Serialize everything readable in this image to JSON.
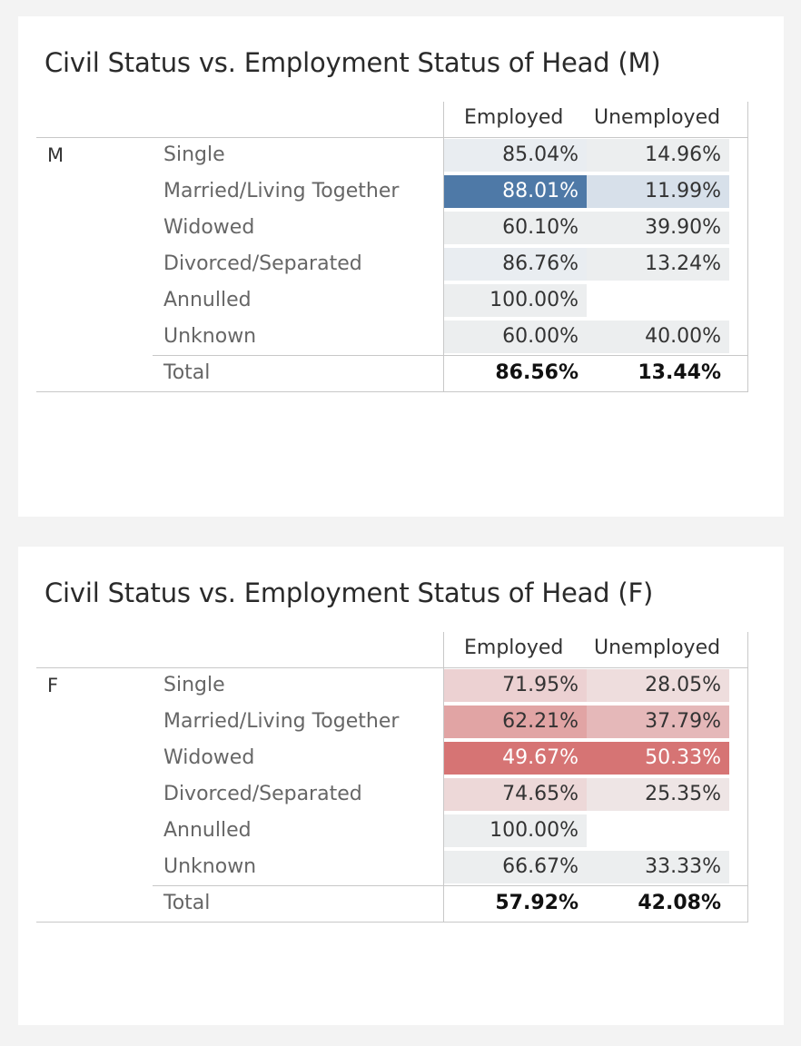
{
  "columns": [
    "Employed",
    "Unemployed"
  ],
  "tables": [
    {
      "title": "Civil Status vs. Employment Status of Head (M)",
      "group": "M",
      "rows": [
        {
          "label": "Single",
          "employed": "85.04%",
          "unemployed": "14.96%"
        },
        {
          "label": "Married/Living Together",
          "employed": "88.01%",
          "unemployed": "11.99%"
        },
        {
          "label": "Widowed",
          "employed": "60.10%",
          "unemployed": "39.90%"
        },
        {
          "label": "Divorced/Separated",
          "employed": "86.76%",
          "unemployed": "13.24%"
        },
        {
          "label": "Annulled",
          "employed": "100.00%",
          "unemployed": ""
        },
        {
          "label": "Unknown",
          "employed": "60.00%",
          "unemployed": "40.00%"
        }
      ],
      "total": {
        "label": "Total",
        "employed": "86.56%",
        "unemployed": "13.44%"
      }
    },
    {
      "title": "Civil Status vs. Employment Status of Head (F)",
      "group": "F",
      "rows": [
        {
          "label": "Single",
          "employed": "71.95%",
          "unemployed": "28.05%"
        },
        {
          "label": "Married/Living Together",
          "employed": "62.21%",
          "unemployed": "37.79%"
        },
        {
          "label": "Widowed",
          "employed": "49.67%",
          "unemployed": "50.33%"
        },
        {
          "label": "Divorced/Separated",
          "employed": "74.65%",
          "unemployed": "25.35%"
        },
        {
          "label": "Annulled",
          "employed": "100.00%",
          "unemployed": ""
        },
        {
          "label": "Unknown",
          "employed": "66.67%",
          "unemployed": "33.33%"
        }
      ],
      "total": {
        "label": "Total",
        "employed": "57.92%",
        "unemployed": "42.08%"
      }
    }
  ],
  "chart_data": [
    {
      "type": "heatmap",
      "title": "Civil Status vs. Employment Status of Head (M)",
      "row_group": "M",
      "columns": [
        "Employed",
        "Unemployed"
      ],
      "rows": [
        "Single",
        "Married/Living Together",
        "Widowed",
        "Divorced/Separated",
        "Annulled",
        "Unknown"
      ],
      "values": [
        [
          85.04,
          14.96
        ],
        [
          88.01,
          11.99
        ],
        [
          60.1,
          39.9
        ],
        [
          86.76,
          13.24
        ],
        [
          100.0,
          null
        ],
        [
          60.0,
          40.0
        ]
      ],
      "total": [
        86.56,
        13.44
      ],
      "color_scale": {
        "low": "#eceeef",
        "high": "#4e79a7"
      },
      "cell_fills": [
        [
          "#e9edf1",
          "#eceeef"
        ],
        [
          "#4e79a7",
          "#d7e0ea"
        ],
        [
          "#eceeef",
          "#eceeef"
        ],
        [
          "#e9edf1",
          "#eceeef"
        ],
        [
          "#eceeef",
          "#ffffff"
        ],
        [
          "#eceeef",
          "#eceeef"
        ]
      ]
    },
    {
      "type": "heatmap",
      "title": "Civil Status vs. Employment Status of Head (F)",
      "row_group": "F",
      "columns": [
        "Employed",
        "Unemployed"
      ],
      "rows": [
        "Single",
        "Married/Living Together",
        "Widowed",
        "Divorced/Separated",
        "Annulled",
        "Unknown"
      ],
      "values": [
        [
          71.95,
          28.05
        ],
        [
          62.21,
          37.79
        ],
        [
          49.67,
          50.33
        ],
        [
          74.65,
          25.35
        ],
        [
          100.0,
          null
        ],
        [
          66.67,
          33.33
        ]
      ],
      "total": [
        57.92,
        42.08
      ],
      "color_scale": {
        "low": "#eceeef",
        "high": "#d67474"
      },
      "cell_fills": [
        [
          "#ecd1d2",
          "#eedddd"
        ],
        [
          "#e1a4a4",
          "#e5b8b9"
        ],
        [
          "#d67474",
          "#d67474"
        ],
        [
          "#edd8d8",
          "#eee5e5"
        ],
        [
          "#eceeef",
          "#ffffff"
        ],
        [
          "#eceeef",
          "#eceeef"
        ]
      ]
    }
  ]
}
